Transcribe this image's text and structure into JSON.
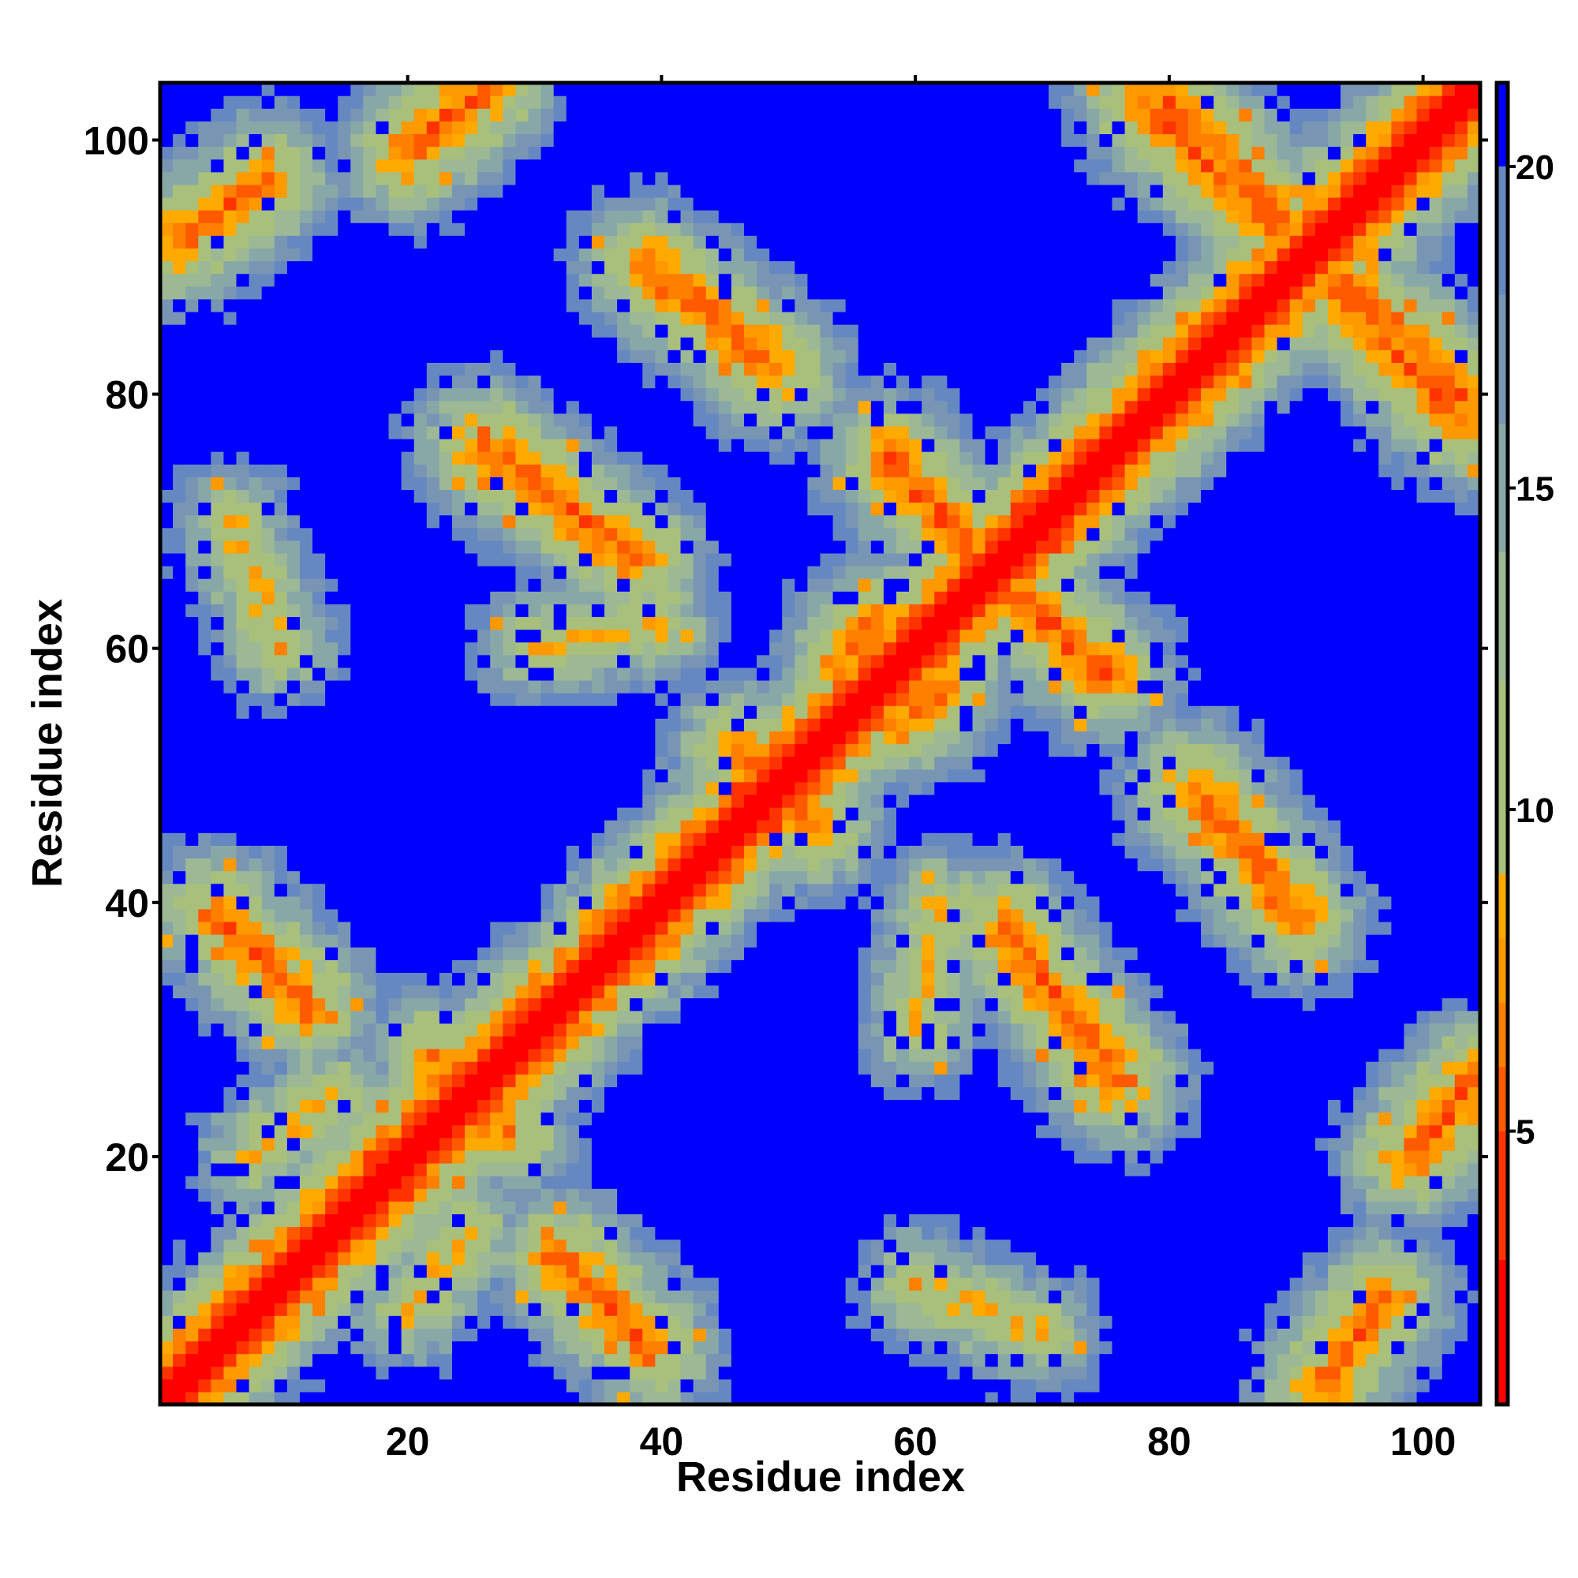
{
  "chart_data": {
    "type": "heatmap",
    "title": "",
    "xlabel": "Residue index",
    "ylabel": "Residue index",
    "n_residues": 104,
    "xlim": [
      0.5,
      104.5
    ],
    "ylim": [
      0.5,
      104.5
    ],
    "x_ticks": [
      20,
      40,
      60,
      80,
      100
    ],
    "y_ticks": [
      20,
      40,
      60,
      80,
      100
    ],
    "colorbar": {
      "range": [
        0.75,
        21.3
      ],
      "ticks": [
        5,
        10,
        15,
        20
      ],
      "scale": [
        [
          0.75,
          "#ff0000"
        ],
        [
          3,
          "#ff3300"
        ],
        [
          5,
          "#ff5a00"
        ],
        [
          6,
          "#ff7f00"
        ],
        [
          7,
          "#ff9900"
        ],
        [
          8,
          "#ffaa00"
        ],
        [
          9,
          "#a8c07c"
        ],
        [
          12,
          "#9cb894"
        ],
        [
          14,
          "#88a8a8"
        ],
        [
          16,
          "#7896b4"
        ],
        [
          18,
          "#6688c0"
        ],
        [
          20,
          "#0000ff"
        ]
      ]
    },
    "diagonal": {
      "min_value": 1,
      "slope": 1.8
    },
    "contact_bands": [
      {
        "from": [
          65,
          67
        ],
        "to": [
          58,
          75
        ],
        "min_value": 5
      },
      {
        "from": [
          38,
          67
        ],
        "to": [
          26,
          76
        ],
        "min_value": 5
      },
      {
        "from": [
          49,
          82
        ],
        "to": [
          39,
          90
        ],
        "min_value": 5
      },
      {
        "from": [
          80,
          103
        ],
        "to": [
          103,
          78
        ],
        "min_value": 5
      },
      {
        "from": [
          20,
          99
        ],
        "to": [
          26,
          104
        ],
        "min_value": 5
      },
      {
        "from": [
          2,
          92
        ],
        "to": [
          9,
          97
        ],
        "min_value": 5.5
      },
      {
        "from": [
          5,
          39
        ],
        "to": [
          12,
          32
        ],
        "min_value": 5
      },
      {
        "from": [
          46,
          52
        ],
        "to": [
          48,
          50
        ],
        "min_value": 5.5
      },
      {
        "from": [
          55,
          60
        ],
        "to": [
          57,
          62
        ],
        "min_value": 5.5
      },
      {
        "from": [
          22,
          28
        ],
        "to": [
          25,
          27
        ],
        "min_value": 6
      },
      {
        "from": [
          8,
          20
        ],
        "to": [
          14,
          25
        ],
        "min_value": 8
      },
      {
        "from": [
          30,
          60
        ],
        "to": [
          40,
          62
        ],
        "min_value": 8
      },
      {
        "from": [
          60,
          10
        ],
        "to": [
          70,
          6
        ],
        "min_value": 8
      }
    ]
  }
}
